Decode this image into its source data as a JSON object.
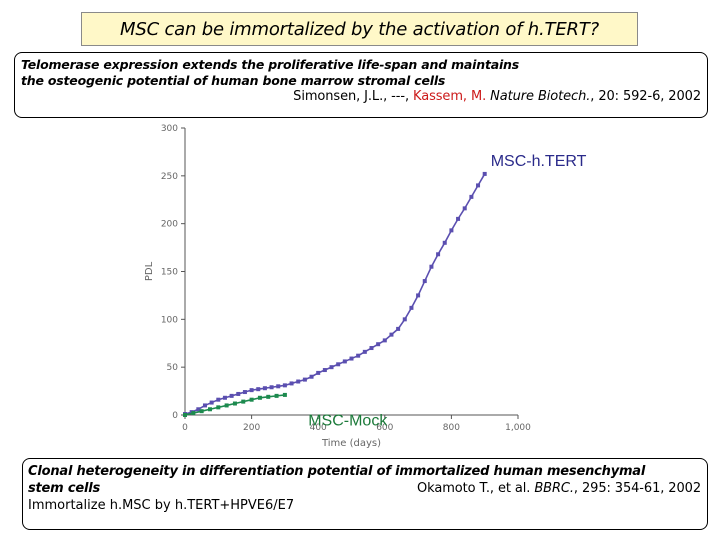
{
  "slide_title": "MSC can be immortalized by the activation of h.TERT?",
  "ref1": {
    "headline_line1": "Telomerase expression extends the proliferative life-span and maintains",
    "headline_line2": "the osteogenic potential of human bone marrow stromal cells",
    "authors_before": "Simonsen, J.L., ---, ",
    "authors_highlight": "Kassem, M.",
    "journal": " Nature Biotech.",
    "volume_pages": ", 20: 592-6, 2002",
    "highlight_color": "#cc1a1a"
  },
  "ref2": {
    "headline_line1": "Clonal heterogeneity in differentiation potential of immortalized human mesenchymal",
    "headline_line2": "stem cells",
    "authors": "Okamoto T., et al. ",
    "journal": "BBRC.",
    "volume_pages": ", 295: 354-61, 2002",
    "note": "Immortalize h.MSC by h.TERT+HPVE6/E7"
  },
  "chart_data": {
    "type": "line",
    "xlabel": "Time (days)",
    "ylabel": "PDL",
    "xlim": [
      0,
      1000
    ],
    "ylim": [
      0,
      300
    ],
    "x_ticks": [
      0,
      200,
      400,
      600,
      800,
      1000
    ],
    "x_tick_labels": [
      "0",
      "200",
      "400",
      "600",
      "800",
      "1,000"
    ],
    "y_ticks": [
      0,
      50,
      100,
      150,
      200,
      250,
      300
    ],
    "y_tick_labels": [
      "0",
      "50",
      "100",
      "150",
      "200",
      "250",
      "300"
    ],
    "series": [
      {
        "name": "MSC-h.TERT",
        "color": "#5b4fb0",
        "label_color": "#2a2a8a",
        "x": [
          0,
          20,
          40,
          60,
          80,
          100,
          120,
          140,
          160,
          180,
          200,
          220,
          240,
          260,
          280,
          300,
          320,
          340,
          360,
          380,
          400,
          420,
          440,
          460,
          480,
          500,
          520,
          540,
          560,
          580,
          600,
          620,
          640,
          660,
          680,
          700,
          720,
          740,
          760,
          780,
          800,
          820,
          840,
          860,
          880,
          900
        ],
        "y": [
          1,
          3,
          6,
          10,
          13,
          16,
          18,
          20,
          22,
          24,
          26,
          27,
          28,
          29,
          30,
          31,
          33,
          35,
          37,
          40,
          44,
          47,
          50,
          53,
          56,
          59,
          62,
          66,
          70,
          74,
          78,
          84,
          90,
          100,
          112,
          125,
          140,
          155,
          168,
          180,
          193,
          205,
          216,
          228,
          240,
          252
        ]
      },
      {
        "name": "MSC-Mock",
        "color": "#1c8a4e",
        "label_color": "#1c7a3a",
        "x": [
          0,
          25,
          50,
          75,
          100,
          125,
          150,
          175,
          200,
          225,
          250,
          275,
          300
        ],
        "y": [
          0,
          2,
          4,
          6,
          8,
          10,
          12,
          14,
          16,
          18,
          19,
          20,
          21
        ]
      }
    ]
  }
}
